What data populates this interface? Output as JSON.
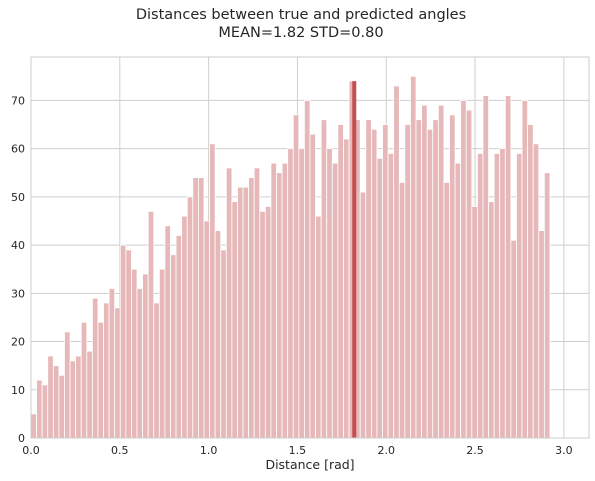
{
  "chart_data": {
    "type": "bar",
    "title": "Distances between true and predicted angles",
    "subtitle": "MEAN=1.82 STD=0.80",
    "xlabel": "Distance [rad]",
    "ylabel": "",
    "xlim": [
      0,
      3.1416
    ],
    "ylim": [
      0,
      79
    ],
    "xticks": [
      0.0,
      0.5,
      1.0,
      1.5,
      2.0,
      2.5,
      3.0
    ],
    "xtick_labels": [
      "0.0",
      "0.5",
      "1.0",
      "1.5",
      "2.0",
      "2.5",
      "3.0"
    ],
    "yticks": [
      0,
      10,
      20,
      30,
      40,
      50,
      60,
      70
    ],
    "ytick_labels": [
      "0",
      "10",
      "20",
      "30",
      "40",
      "50",
      "60",
      "70"
    ],
    "grid": true,
    "bin_width": 0.031416,
    "values": [
      5,
      12,
      11,
      17,
      15,
      13,
      22,
      16,
      17,
      24,
      18,
      29,
      24,
      28,
      31,
      27,
      40,
      39,
      35,
      31,
      34,
      47,
      28,
      35,
      44,
      38,
      42,
      46,
      50,
      54,
      54,
      45,
      61,
      43,
      39,
      56,
      49,
      52,
      52,
      54,
      56,
      47,
      48,
      57,
      55,
      57,
      60,
      67,
      60,
      70,
      63,
      46,
      66,
      60,
      57,
      65,
      62,
      74,
      66,
      51,
      66,
      64,
      58,
      65,
      59,
      73,
      53,
      65,
      75,
      66,
      69,
      64,
      66,
      69,
      53,
      67,
      57,
      70,
      68,
      48,
      59,
      71,
      49,
      59,
      60,
      71,
      41,
      59,
      70,
      65,
      61,
      43,
      55
    ],
    "mean_line": {
      "x": 1.82,
      "y": 74,
      "color": "#c44e52"
    },
    "bar_color": "#e6b8b9",
    "grid_color": "#cfcfcf"
  }
}
